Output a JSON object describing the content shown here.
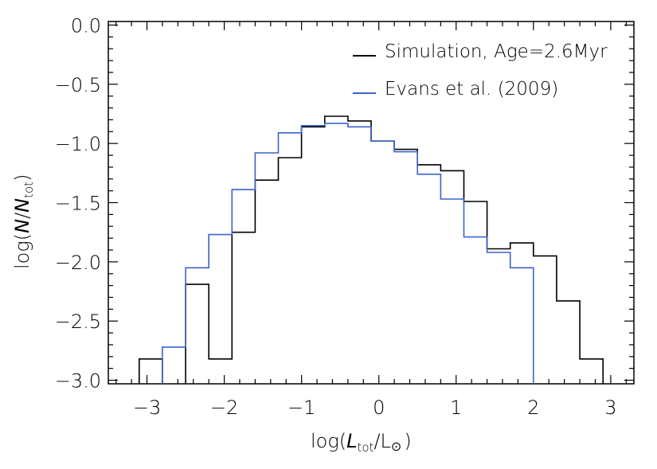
{
  "chart_data": {
    "type": "histogram-step",
    "xlabel_parts": {
      "prefix": "log(",
      "var": "L",
      "sub": "tot",
      "slash": "/L",
      "sun": "⊙",
      "suffix": ")"
    },
    "ylabel_parts": {
      "prefix": "log(",
      "var": "N",
      "slash": "/",
      "var2": "N",
      "sub": "tot",
      "suffix": ")"
    },
    "xlim": [
      -3.5,
      3.3
    ],
    "ylim": [
      -3.03,
      0.03
    ],
    "xticks": [
      -3,
      -2,
      -1,
      0,
      1,
      2,
      3
    ],
    "xtick_labels": [
      "−3",
      "−2",
      "−1",
      "0",
      "1",
      "2",
      "3"
    ],
    "yticks": [
      0.0,
      -0.5,
      -1.0,
      -1.5,
      -2.0,
      -2.5,
      -3.0
    ],
    "ytick_labels": [
      "0.0",
      "−0.5",
      "−1.0",
      "−1.5",
      "−2.0",
      "−2.5",
      "−3.0"
    ],
    "series": [
      {
        "name": "Simulation, Age=2.6Myr",
        "color": "#000000",
        "edges": [
          -3.1,
          -2.8,
          -2.5,
          -2.2,
          -1.9,
          -1.6,
          -1.3,
          -1.0,
          -0.7,
          -0.4,
          -0.1,
          0.2,
          0.5,
          0.8,
          1.1,
          1.4,
          1.7,
          2.0,
          2.3,
          2.6,
          2.9
        ],
        "values": [
          -2.82,
          null,
          -2.19,
          -2.82,
          -1.75,
          -1.31,
          -1.12,
          -0.86,
          -0.77,
          -0.81,
          -0.98,
          -1.05,
          -1.18,
          -1.23,
          -1.49,
          -1.89,
          -1.84,
          -1.95,
          -2.33,
          -2.82
        ],
        "baseline": -3.03
      },
      {
        "name": "Evans et al. (2009)",
        "color": "#3b63c8",
        "edges": [
          -2.8,
          -2.5,
          -2.2,
          -1.9,
          -1.6,
          -1.3,
          -1.0,
          -0.7,
          -0.4,
          -0.1,
          0.2,
          0.5,
          0.8,
          1.1,
          1.4,
          1.7,
          2.0
        ],
        "values": [
          -2.72,
          -2.05,
          -1.77,
          -1.39,
          -1.08,
          -0.91,
          -0.85,
          -0.83,
          -0.86,
          -0.98,
          -1.07,
          -1.26,
          -1.47,
          -1.79,
          -1.92,
          -2.05
        ],
        "baseline": -3.03
      }
    ]
  }
}
